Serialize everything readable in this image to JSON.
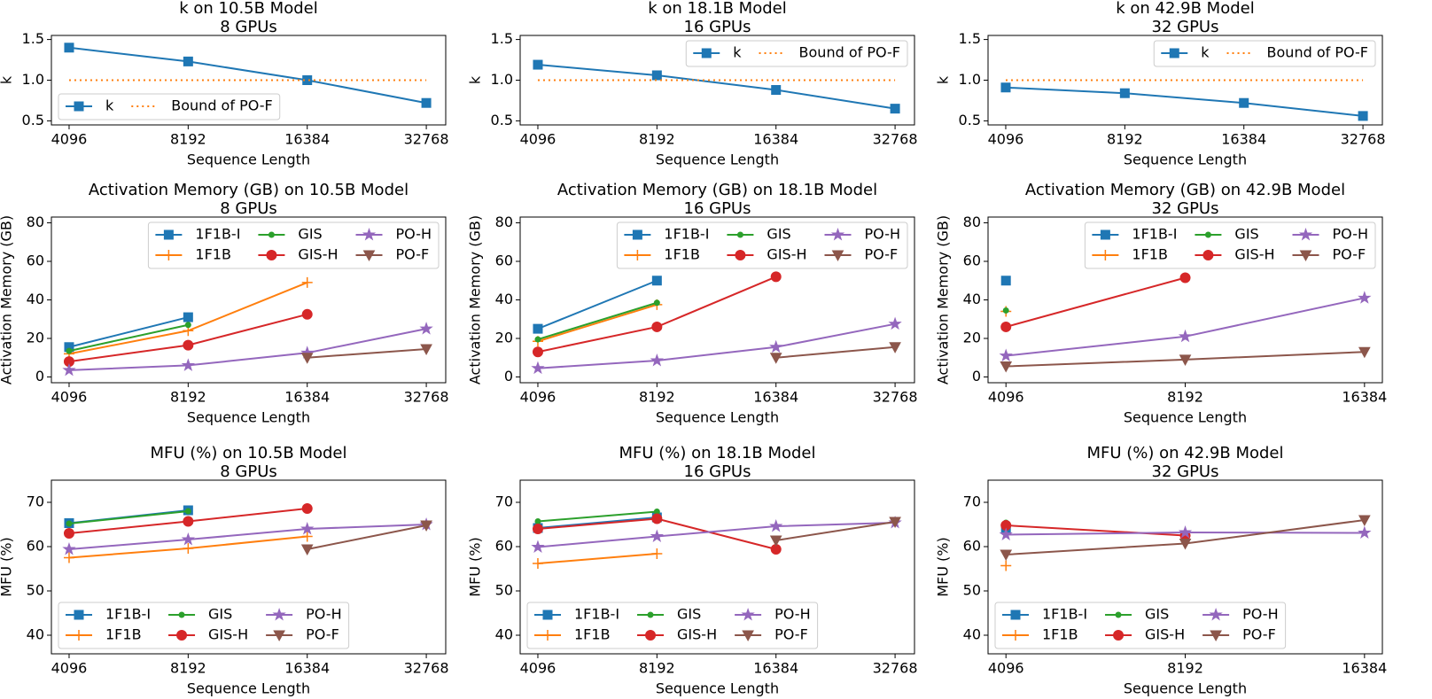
{
  "chart_data": [
    {
      "type": "line",
      "title": "k on 10.5B Model",
      "subtitle": "8 GPUs",
      "xlabel": "Sequence Length",
      "ylabel": "k",
      "x": [
        4096,
        8192,
        16384,
        32768
      ],
      "xscale": "log",
      "xlim": [
        3695,
        36690
      ],
      "xticks": [
        4096,
        8192,
        16384,
        32768
      ],
      "ylim": [
        0.45,
        1.55
      ],
      "yticks": [
        0.5,
        {
          "value": 1,
          "label": "1.0"
        },
        1.5
      ],
      "legend": "lower left",
      "series": [
        {
          "name": "k",
          "color": "#1f77b4",
          "marker": "square",
          "values": [
            1.4,
            1.23,
            1.0,
            0.72
          ]
        },
        {
          "name": "Bound of PO-F",
          "color": "#ff7f0e",
          "linestyle": "dotted",
          "values": [
            1,
            1,
            1,
            1
          ]
        }
      ]
    },
    {
      "type": "line",
      "title": "k on 18.1B Model",
      "subtitle": "16 GPUs",
      "xlabel": "Sequence Length",
      "ylabel": "k",
      "x": [
        4096,
        8192,
        16384,
        32768
      ],
      "xscale": "log",
      "xlim": [
        3695,
        36690
      ],
      "xticks": [
        4096,
        8192,
        16384,
        32768
      ],
      "ylim": [
        0.45,
        1.55
      ],
      "yticks": [
        0.5,
        {
          "value": 1,
          "label": "1.0"
        },
        1.5
      ],
      "legend": "upper right",
      "series": [
        {
          "name": "k",
          "color": "#1f77b4",
          "marker": "square",
          "values": [
            1.19,
            1.06,
            0.88,
            0.65
          ]
        },
        {
          "name": "Bound of PO-F",
          "color": "#ff7f0e",
          "linestyle": "dotted",
          "values": [
            1,
            1,
            1,
            1
          ]
        }
      ]
    },
    {
      "type": "line",
      "title": "k on 42.9B Model",
      "subtitle": "32 GPUs",
      "xlabel": "Sequence Length",
      "ylabel": "k",
      "x": [
        4096,
        8192,
        16384,
        32768
      ],
      "xscale": "log",
      "xlim": [
        3695,
        36690
      ],
      "xticks": [
        4096,
        8192,
        16384,
        32768
      ],
      "ylim": [
        0.45,
        1.55
      ],
      "yticks": [
        0.5,
        {
          "value": 1,
          "label": "1.0"
        },
        1.5
      ],
      "legend": "upper right",
      "series": [
        {
          "name": "k",
          "color": "#1f77b4",
          "marker": "square",
          "values": [
            0.91,
            0.84,
            0.72,
            0.56
          ]
        },
        {
          "name": "Bound of PO-F",
          "color": "#ff7f0e",
          "linestyle": "dotted",
          "values": [
            1,
            1,
            1,
            1
          ]
        }
      ]
    },
    {
      "type": "line",
      "title": "Activation Memory (GB) on 10.5B Model",
      "subtitle": "8 GPUs",
      "xlabel": "Sequence Length",
      "ylabel": "Activation Memory (GB)",
      "x": [
        4096,
        8192,
        16384,
        32768
      ],
      "xscale": "log",
      "xlim": [
        3695,
        36690
      ],
      "xticks": [
        4096,
        8192,
        16384,
        32768
      ],
      "ylim": [
        -3,
        83
      ],
      "yticks": [
        0,
        20,
        40,
        60,
        80
      ],
      "legend": "upper right",
      "series": [
        {
          "name": "1F1B-I",
          "color": "#1f77b4",
          "marker": "square",
          "values": [
            15.5,
            31,
            null,
            null
          ]
        },
        {
          "name": "1F1B",
          "color": "#ff7f0e",
          "marker": "plus",
          "values": [
            12,
            24,
            49,
            null
          ]
        },
        {
          "name": "GIS",
          "color": "#2ca02c",
          "marker": "dot",
          "values": [
            13.5,
            27,
            null,
            null
          ]
        },
        {
          "name": "GIS-H",
          "color": "#d62728",
          "marker": "circle",
          "values": [
            8,
            16.5,
            32.5,
            null
          ]
        },
        {
          "name": "PO-H",
          "color": "#9467bd",
          "marker": "star",
          "values": [
            3.5,
            6,
            12.5,
            25
          ]
        },
        {
          "name": "PO-F",
          "color": "#8c564b",
          "marker": "triangle",
          "values": [
            null,
            null,
            10,
            14.5
          ]
        }
      ]
    },
    {
      "type": "line",
      "title": "Activation Memory (GB) on 18.1B Model",
      "subtitle": "16 GPUs",
      "xlabel": "Sequence Length",
      "ylabel": "Activation Memory (GB)",
      "x": [
        4096,
        8192,
        16384,
        32768
      ],
      "xscale": "log",
      "xlim": [
        3695,
        36690
      ],
      "xticks": [
        4096,
        8192,
        16384,
        32768
      ],
      "ylim": [
        -3,
        83
      ],
      "yticks": [
        0,
        20,
        40,
        60,
        80
      ],
      "legend": "upper right",
      "series": [
        {
          "name": "1F1B-I",
          "color": "#1f77b4",
          "marker": "square",
          "values": [
            25,
            50,
            null,
            null
          ]
        },
        {
          "name": "1F1B",
          "color": "#ff7f0e",
          "marker": "plus",
          "values": [
            18.5,
            37.5,
            null,
            null
          ]
        },
        {
          "name": "GIS",
          "color": "#2ca02c",
          "marker": "dot",
          "values": [
            19.5,
            38.5,
            null,
            null
          ]
        },
        {
          "name": "GIS-H",
          "color": "#d62728",
          "marker": "circle",
          "values": [
            13,
            26,
            52,
            null
          ]
        },
        {
          "name": "PO-H",
          "color": "#9467bd",
          "marker": "star",
          "values": [
            4.5,
            8.5,
            15.5,
            27.5
          ]
        },
        {
          "name": "PO-F",
          "color": "#8c564b",
          "marker": "triangle",
          "values": [
            null,
            null,
            10,
            15.5
          ]
        }
      ]
    },
    {
      "type": "line",
      "title": "Activation Memory (GB) on 42.9B Model",
      "subtitle": "32 GPUs",
      "xlabel": "Sequence Length",
      "ylabel": "Activation Memory (GB)",
      "x": [
        4096,
        8192,
        16384
      ],
      "xscale": "log",
      "xlim": [
        3822,
        17556
      ],
      "xticks": [
        4096,
        8192,
        16384
      ],
      "ylim": [
        -3,
        83
      ],
      "yticks": [
        0,
        20,
        40,
        60,
        80
      ],
      "legend": "upper right",
      "series": [
        {
          "name": "1F1B-I",
          "color": "#1f77b4",
          "marker": "square",
          "values": [
            50,
            null,
            null
          ]
        },
        {
          "name": "1F1B",
          "color": "#ff7f0e",
          "marker": "plus",
          "values": [
            34,
            null,
            null
          ]
        },
        {
          "name": "GIS",
          "color": "#2ca02c",
          "marker": "dot",
          "values": [
            34.5,
            null,
            null
          ]
        },
        {
          "name": "GIS-H",
          "color": "#d62728",
          "marker": "circle",
          "values": [
            26,
            51.5,
            null
          ]
        },
        {
          "name": "PO-H",
          "color": "#9467bd",
          "marker": "star",
          "values": [
            11,
            21,
            41
          ]
        },
        {
          "name": "PO-F",
          "color": "#8c564b",
          "marker": "triangle",
          "values": [
            5.5,
            9,
            13
          ]
        }
      ]
    },
    {
      "type": "line",
      "title": "MFU (%) on 10.5B Model",
      "subtitle": "8 GPUs",
      "xlabel": "Sequence Length",
      "ylabel": "MFU (%)",
      "x": [
        4096,
        8192,
        16384,
        32768
      ],
      "xscale": "log",
      "xlim": [
        3695,
        36690
      ],
      "xticks": [
        4096,
        8192,
        16384,
        32768
      ],
      "ylim": [
        35.8,
        75
      ],
      "yticks": [
        40,
        50,
        60,
        70
      ],
      "legend": "lower left",
      "series": [
        {
          "name": "1F1B-I",
          "color": "#1f77b4",
          "marker": "square",
          "values": [
            65.3,
            68.2,
            null,
            null
          ]
        },
        {
          "name": "1F1B",
          "color": "#ff7f0e",
          "marker": "plus",
          "values": [
            57.5,
            59.6,
            62.3,
            null
          ]
        },
        {
          "name": "GIS",
          "color": "#2ca02c",
          "marker": "dot",
          "values": [
            65.2,
            68,
            null,
            null
          ]
        },
        {
          "name": "GIS-H",
          "color": "#d62728",
          "marker": "circle",
          "values": [
            63,
            65.7,
            68.6,
            null
          ]
        },
        {
          "name": "PO-H",
          "color": "#9467bd",
          "marker": "star",
          "values": [
            59.4,
            61.6,
            64,
            65
          ]
        },
        {
          "name": "PO-F",
          "color": "#8c564b",
          "marker": "triangle",
          "values": [
            null,
            null,
            59.4,
            64.8
          ]
        }
      ]
    },
    {
      "type": "line",
      "title": "MFU (%) on 18.1B Model",
      "subtitle": "16 GPUs",
      "xlabel": "Sequence Length",
      "ylabel": "MFU (%)",
      "x": [
        4096,
        8192,
        16384,
        32768
      ],
      "xscale": "log",
      "xlim": [
        3695,
        36690
      ],
      "xticks": [
        4096,
        8192,
        16384,
        32768
      ],
      "ylim": [
        35.8,
        75
      ],
      "yticks": [
        40,
        50,
        60,
        70
      ],
      "legend": "lower left",
      "series": [
        {
          "name": "1F1B-I",
          "color": "#1f77b4",
          "marker": "square",
          "values": [
            64.2,
            66.6,
            null,
            null
          ]
        },
        {
          "name": "1F1B",
          "color": "#ff7f0e",
          "marker": "plus",
          "values": [
            56.2,
            58.4,
            null,
            null
          ]
        },
        {
          "name": "GIS",
          "color": "#2ca02c",
          "marker": "dot",
          "values": [
            65.7,
            67.9,
            null,
            null
          ]
        },
        {
          "name": "GIS-H",
          "color": "#d62728",
          "marker": "circle",
          "values": [
            64,
            66.3,
            59.4,
            null
          ]
        },
        {
          "name": "PO-H",
          "color": "#9467bd",
          "marker": "star",
          "values": [
            59.9,
            62.3,
            64.6,
            65.4
          ]
        },
        {
          "name": "PO-F",
          "color": "#8c564b",
          "marker": "triangle",
          "values": [
            null,
            null,
            61.4,
            65.6
          ]
        }
      ]
    },
    {
      "type": "line",
      "title": "MFU (%) on 42.9B Model",
      "subtitle": "32 GPUs",
      "xlabel": "Sequence Length",
      "ylabel": "MFU (%)",
      "x": [
        4096,
        8192,
        16384
      ],
      "xscale": "log",
      "xlim": [
        3822,
        17556
      ],
      "xticks": [
        4096,
        8192,
        16384
      ],
      "ylim": [
        35.8,
        75
      ],
      "yticks": [
        40,
        50,
        60,
        70
      ],
      "legend": "lower left",
      "series": [
        {
          "name": "1F1B-I",
          "color": "#1f77b4",
          "marker": "square",
          "values": [
            64,
            null,
            null
          ]
        },
        {
          "name": "1F1B",
          "color": "#ff7f0e",
          "marker": "plus",
          "values": [
            55.7,
            null,
            null
          ]
        },
        {
          "name": "GIS",
          "color": "#2ca02c",
          "marker": "dot",
          "values": [
            65.4,
            null,
            null
          ]
        },
        {
          "name": "GIS-H",
          "color": "#d62728",
          "marker": "circle",
          "values": [
            64.8,
            62.5,
            null
          ]
        },
        {
          "name": "PO-H",
          "color": "#9467bd",
          "marker": "star",
          "values": [
            62.7,
            63.2,
            63.1
          ]
        },
        {
          "name": "PO-F",
          "color": "#8c564b",
          "marker": "triangle",
          "values": [
            58.2,
            60.7,
            66
          ]
        }
      ]
    }
  ]
}
